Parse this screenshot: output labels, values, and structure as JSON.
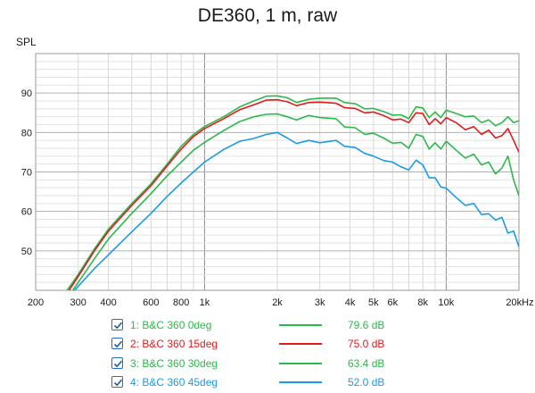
{
  "chart_data": {
    "type": "line",
    "title": "DE360, 1 m, raw",
    "ylabel": "SPL",
    "xlabel": "",
    "x_scale": "log",
    "xlim": [
      200,
      20000
    ],
    "ylim": [
      40,
      100
    ],
    "grid": true,
    "x_ticks": [
      {
        "value": 200,
        "label": "200"
      },
      {
        "value": 300,
        "label": "300"
      },
      {
        "value": 400,
        "label": "400"
      },
      {
        "value": 600,
        "label": "600"
      },
      {
        "value": 800,
        "label": "800"
      },
      {
        "value": 1000,
        "label": "1k"
      },
      {
        "value": 2000,
        "label": "2k"
      },
      {
        "value": 3000,
        "label": "3k"
      },
      {
        "value": 4000,
        "label": "4k"
      },
      {
        "value": 5000,
        "label": "5k"
      },
      {
        "value": 6000,
        "label": "6k"
      },
      {
        "value": 8000,
        "label": "8k"
      },
      {
        "value": 10000,
        "label": "10k"
      },
      {
        "value": 20000,
        "label": "20kHz"
      }
    ],
    "y_ticks": [
      {
        "value": 50,
        "label": "50"
      },
      {
        "value": 60,
        "label": "60"
      },
      {
        "value": 70,
        "label": "70"
      },
      {
        "value": 80,
        "label": "80"
      },
      {
        "value": 90,
        "label": "90"
      }
    ],
    "series": [
      {
        "name": "1: B&C 360 0deg",
        "value": "79.6 dB",
        "color": "#2db84a",
        "points": [
          [
            270,
            40
          ],
          [
            300,
            44
          ],
          [
            350,
            50.5
          ],
          [
            400,
            55.5
          ],
          [
            500,
            62
          ],
          [
            600,
            67
          ],
          [
            700,
            72
          ],
          [
            800,
            76.5
          ],
          [
            900,
            79.5
          ],
          [
            1000,
            81.5
          ],
          [
            1200,
            84
          ],
          [
            1400,
            86.5
          ],
          [
            1600,
            88
          ],
          [
            1800,
            89.2
          ],
          [
            2000,
            89.3
          ],
          [
            2200,
            88.8
          ],
          [
            2400,
            87.6
          ],
          [
            2700,
            88.4
          ],
          [
            3000,
            88.7
          ],
          [
            3500,
            88.7
          ],
          [
            3800,
            87.6
          ],
          [
            4200,
            87.3
          ],
          [
            4600,
            86
          ],
          [
            5000,
            86.1
          ],
          [
            5500,
            85.3
          ],
          [
            6000,
            84.4
          ],
          [
            6500,
            84.5
          ],
          [
            7000,
            83.5
          ],
          [
            7500,
            86.5
          ],
          [
            8000,
            86.2
          ],
          [
            8500,
            83.8
          ],
          [
            9000,
            85.2
          ],
          [
            9500,
            83.8
          ],
          [
            10000,
            85.7
          ],
          [
            11000,
            84.8
          ],
          [
            12000,
            84
          ],
          [
            13000,
            84.2
          ],
          [
            14000,
            82.5
          ],
          [
            15000,
            83.2
          ],
          [
            16000,
            81.7
          ],
          [
            17000,
            82.5
          ],
          [
            18000,
            84
          ],
          [
            19000,
            82.5
          ],
          [
            20000,
            83
          ]
        ]
      },
      {
        "name": "2: B&C 360 15deg",
        "value": "75.0 dB",
        "color": "#e31a1a",
        "points": [
          [
            275,
            40
          ],
          [
            300,
            43.5
          ],
          [
            350,
            50
          ],
          [
            400,
            55
          ],
          [
            500,
            61.5
          ],
          [
            600,
            66.5
          ],
          [
            700,
            71.5
          ],
          [
            800,
            75.8
          ],
          [
            900,
            79
          ],
          [
            1000,
            81
          ],
          [
            1200,
            83.5
          ],
          [
            1400,
            85.8
          ],
          [
            1600,
            87
          ],
          [
            1800,
            88.2
          ],
          [
            2000,
            88.3
          ],
          [
            2200,
            87.8
          ],
          [
            2400,
            86.8
          ],
          [
            2700,
            87.6
          ],
          [
            3000,
            87.7
          ],
          [
            3500,
            87.4
          ],
          [
            3800,
            86.3
          ],
          [
            4200,
            86.1
          ],
          [
            4600,
            85
          ],
          [
            5000,
            85.2
          ],
          [
            5500,
            84.3
          ],
          [
            6000,
            83.2
          ],
          [
            6500,
            83.4
          ],
          [
            7000,
            82.5
          ],
          [
            7500,
            85
          ],
          [
            8000,
            84.8
          ],
          [
            8500,
            82
          ],
          [
            9000,
            83.5
          ],
          [
            9500,
            82.2
          ],
          [
            10000,
            83.8
          ],
          [
            11000,
            82.5
          ],
          [
            12000,
            80.7
          ],
          [
            13000,
            81.5
          ],
          [
            14000,
            79.5
          ],
          [
            15000,
            80.6
          ],
          [
            16000,
            78.6
          ],
          [
            17000,
            79.2
          ],
          [
            18000,
            81
          ],
          [
            19000,
            78
          ],
          [
            20000,
            75
          ]
        ]
      },
      {
        "name": "3: B&C 360 30deg",
        "value": "63.4 dB",
        "color": "#2db84a",
        "points": [
          [
            285,
            40
          ],
          [
            300,
            42
          ],
          [
            350,
            48
          ],
          [
            400,
            53
          ],
          [
            500,
            59.5
          ],
          [
            600,
            64.5
          ],
          [
            700,
            69
          ],
          [
            800,
            72.5
          ],
          [
            900,
            75.5
          ],
          [
            1000,
            77.5
          ],
          [
            1200,
            80.5
          ],
          [
            1400,
            82.8
          ],
          [
            1600,
            84
          ],
          [
            1800,
            84.6
          ],
          [
            2000,
            84.7
          ],
          [
            2200,
            84
          ],
          [
            2400,
            83.2
          ],
          [
            2700,
            84.3
          ],
          [
            3000,
            83.8
          ],
          [
            3500,
            83.5
          ],
          [
            3800,
            81.4
          ],
          [
            4200,
            81.2
          ],
          [
            4600,
            79.5
          ],
          [
            5000,
            79.8
          ],
          [
            5500,
            78.6
          ],
          [
            6000,
            77.3
          ],
          [
            6500,
            77.5
          ],
          [
            7000,
            76
          ],
          [
            7500,
            79.5
          ],
          [
            8000,
            79
          ],
          [
            8500,
            75.8
          ],
          [
            9000,
            77.4
          ],
          [
            9500,
            75.8
          ],
          [
            10000,
            77.8
          ],
          [
            11000,
            75.5
          ],
          [
            12000,
            73.5
          ],
          [
            13000,
            74.5
          ],
          [
            14000,
            71.8
          ],
          [
            15000,
            72.5
          ],
          [
            16000,
            69.5
          ],
          [
            17000,
            71
          ],
          [
            18000,
            74
          ],
          [
            19000,
            68
          ],
          [
            20000,
            64
          ]
        ]
      },
      {
        "name": "4: B&C 360 45deg",
        "value": "52.0 dB",
        "color": "#1a9be8",
        "points": [
          [
            290,
            40
          ],
          [
            300,
            41
          ],
          [
            350,
            45.5
          ],
          [
            400,
            49
          ],
          [
            500,
            54.8
          ],
          [
            600,
            59.5
          ],
          [
            700,
            63.8
          ],
          [
            800,
            67.2
          ],
          [
            900,
            70
          ],
          [
            1000,
            72.5
          ],
          [
            1200,
            75.7
          ],
          [
            1400,
            77.8
          ],
          [
            1600,
            78.5
          ],
          [
            1800,
            79.5
          ],
          [
            2000,
            80
          ],
          [
            2200,
            78.6
          ],
          [
            2400,
            77.2
          ],
          [
            2700,
            78
          ],
          [
            3000,
            77.4
          ],
          [
            3500,
            78
          ],
          [
            3800,
            76.5
          ],
          [
            4200,
            76.2
          ],
          [
            4600,
            74.7
          ],
          [
            5000,
            74
          ],
          [
            5500,
            72.9
          ],
          [
            6000,
            72.5
          ],
          [
            6500,
            71.3
          ],
          [
            7000,
            70.5
          ],
          [
            7500,
            73
          ],
          [
            8000,
            71.8
          ],
          [
            8500,
            68.5
          ],
          [
            9000,
            68.5
          ],
          [
            9500,
            66.2
          ],
          [
            10000,
            65.9
          ],
          [
            11000,
            63.5
          ],
          [
            12000,
            61.5
          ],
          [
            13000,
            62
          ],
          [
            14000,
            59.2
          ],
          [
            15000,
            59.4
          ],
          [
            16000,
            57.8
          ],
          [
            17000,
            58.5
          ],
          [
            18000,
            54.5
          ],
          [
            19000,
            55
          ],
          [
            20000,
            51
          ]
        ]
      }
    ]
  }
}
